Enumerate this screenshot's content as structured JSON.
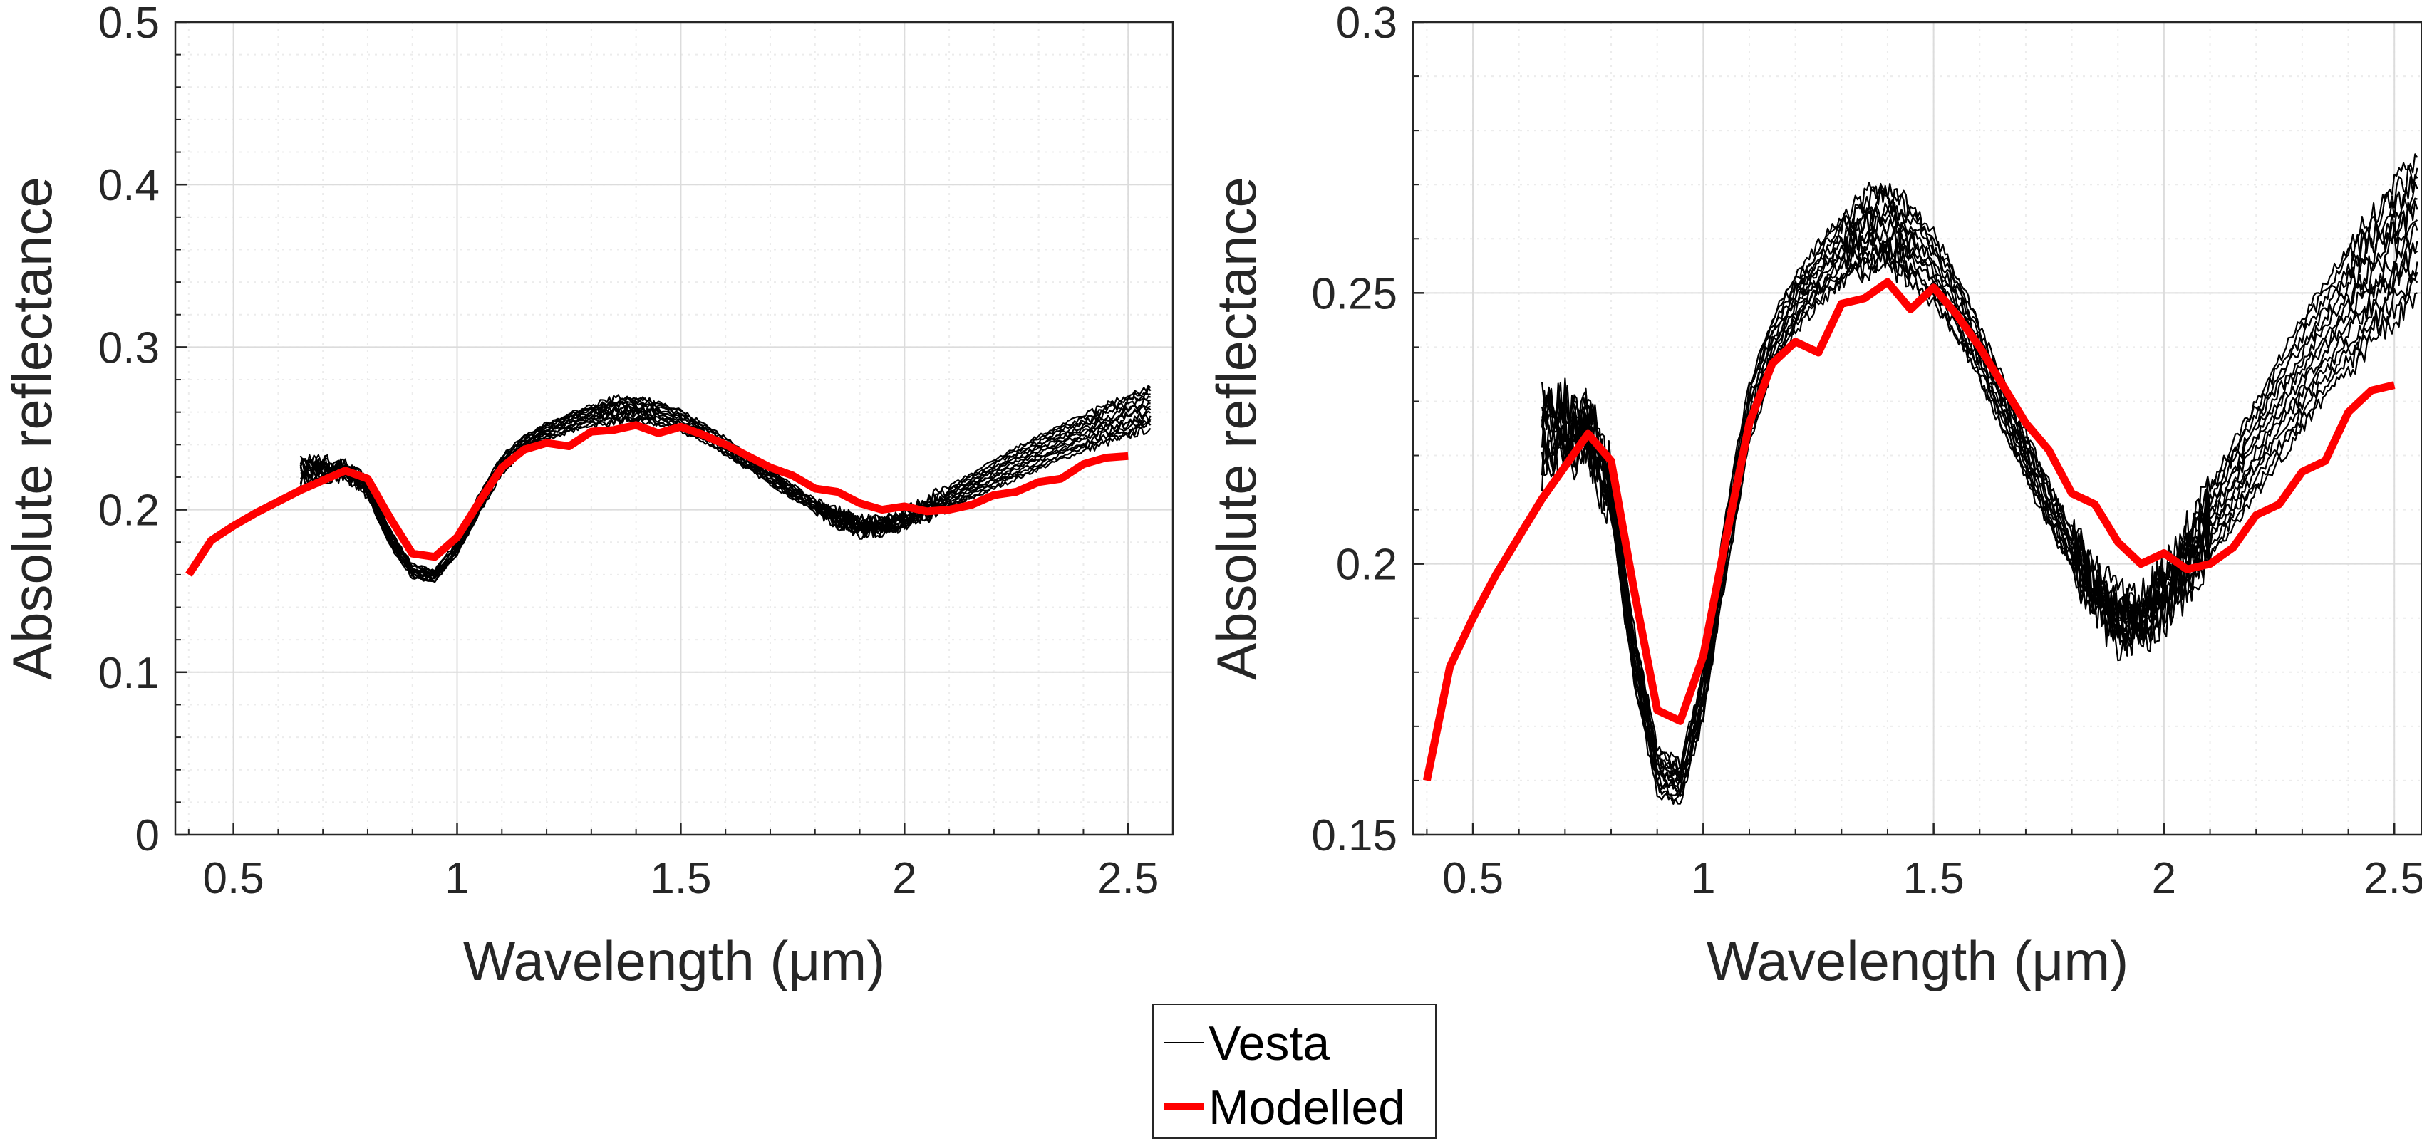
{
  "figure": {
    "legend": {
      "entries": [
        "Vesta",
        "Modelled"
      ],
      "placement": "bottom-center"
    }
  },
  "chart_data": [
    {
      "type": "line",
      "panel": "left",
      "title": "",
      "xlabel": "Wavelength (μm)",
      "ylabel": "Absolute reflectance",
      "xlim": [
        0.37,
        2.6
      ],
      "ylim": [
        0,
        0.5
      ],
      "xticks": [
        0.5,
        1,
        1.5,
        2,
        2.5
      ],
      "xtick_labels": [
        "0.5",
        "1",
        "1.5",
        "2",
        "2.5"
      ],
      "yticks": [
        0,
        0.1,
        0.2,
        0.3,
        0.4,
        0.5
      ],
      "ytick_labels": [
        "0",
        "0.1",
        "0.2",
        "0.3",
        "0.4",
        "0.5"
      ],
      "grid": true,
      "series": [
        {
          "name": "Modelled",
          "color": "#ff0000",
          "x": [
            0.4,
            0.45,
            0.5,
            0.55,
            0.6,
            0.65,
            0.7,
            0.75,
            0.8,
            0.85,
            0.9,
            0.95,
            1.0,
            1.05,
            1.1,
            1.15,
            1.2,
            1.25,
            1.3,
            1.35,
            1.4,
            1.45,
            1.5,
            1.55,
            1.6,
            1.65,
            1.7,
            1.75,
            1.8,
            1.85,
            1.9,
            1.95,
            2.0,
            2.05,
            2.1,
            2.15,
            2.2,
            2.25,
            2.3,
            2.35,
            2.4,
            2.45,
            2.5
          ],
          "y": [
            0.16,
            0.181,
            0.19,
            0.198,
            0.205,
            0.212,
            0.218,
            0.224,
            0.219,
            0.195,
            0.173,
            0.171,
            0.183,
            0.205,
            0.226,
            0.237,
            0.241,
            0.239,
            0.248,
            0.249,
            0.252,
            0.247,
            0.251,
            0.246,
            0.24,
            0.233,
            0.226,
            0.221,
            0.213,
            0.211,
            0.204,
            0.2,
            0.202,
            0.199,
            0.2,
            0.203,
            0.209,
            0.211,
            0.217,
            0.219,
            0.228,
            0.232,
            0.233
          ]
        },
        {
          "name": "Vesta",
          "color": "#000000",
          "x": [
            0.65,
            0.7,
            0.75,
            0.8,
            0.85,
            0.9,
            0.95,
            1.0,
            1.05,
            1.1,
            1.15,
            1.2,
            1.25,
            1.3,
            1.35,
            1.4,
            1.45,
            1.5,
            1.55,
            1.6,
            1.65,
            1.7,
            1.75,
            1.8,
            1.85,
            1.9,
            1.95,
            2.0,
            2.05,
            2.1,
            2.15,
            2.2,
            2.25,
            2.3,
            2.35,
            2.4,
            2.45,
            2.5,
            2.55
          ],
          "y_low": [
            0.218,
            0.219,
            0.221,
            0.208,
            0.178,
            0.158,
            0.156,
            0.172,
            0.198,
            0.222,
            0.236,
            0.243,
            0.248,
            0.252,
            0.254,
            0.255,
            0.252,
            0.248,
            0.242,
            0.234,
            0.225,
            0.216,
            0.207,
            0.199,
            0.191,
            0.186,
            0.186,
            0.19,
            0.195,
            0.201,
            0.207,
            0.213,
            0.219,
            0.225,
            0.231,
            0.236,
            0.241,
            0.245,
            0.25
          ],
          "y_high": [
            0.23,
            0.23,
            0.228,
            0.218,
            0.188,
            0.166,
            0.163,
            0.18,
            0.21,
            0.233,
            0.245,
            0.253,
            0.259,
            0.264,
            0.268,
            0.269,
            0.266,
            0.261,
            0.253,
            0.244,
            0.234,
            0.224,
            0.215,
            0.206,
            0.199,
            0.194,
            0.193,
            0.199,
            0.206,
            0.214,
            0.222,
            0.23,
            0.238,
            0.245,
            0.252,
            0.258,
            0.264,
            0.27,
            0.275
          ]
        }
      ]
    },
    {
      "type": "line",
      "panel": "right",
      "title": "",
      "xlabel": "Wavelength (μm)",
      "ylabel": "Absolute reflectance",
      "xlim": [
        0.37,
        2.56
      ],
      "ylim": [
        0.15,
        0.3
      ],
      "xticks": [
        0.5,
        1,
        1.5,
        2,
        2.5
      ],
      "xtick_labels": [
        "0.5",
        "1",
        "1.5",
        "2",
        "2.5"
      ],
      "yticks": [
        0.15,
        0.2,
        0.25,
        0.3
      ],
      "ytick_labels": [
        "0.15",
        "0.2",
        "0.25",
        "0.3"
      ],
      "grid": true,
      "series": [
        {
          "name": "Modelled",
          "color": "#ff0000",
          "x": [
            0.4,
            0.45,
            0.5,
            0.55,
            0.6,
            0.65,
            0.7,
            0.75,
            0.8,
            0.85,
            0.9,
            0.95,
            1.0,
            1.05,
            1.1,
            1.15,
            1.2,
            1.25,
            1.3,
            1.35,
            1.4,
            1.45,
            1.5,
            1.55,
            1.6,
            1.65,
            1.7,
            1.75,
            1.8,
            1.85,
            1.9,
            1.95,
            2.0,
            2.05,
            2.1,
            2.15,
            2.2,
            2.25,
            2.3,
            2.35,
            2.4,
            2.45,
            2.5
          ],
          "y": [
            0.16,
            0.181,
            0.19,
            0.198,
            0.205,
            0.212,
            0.218,
            0.224,
            0.219,
            0.195,
            0.173,
            0.171,
            0.183,
            0.205,
            0.226,
            0.237,
            0.241,
            0.239,
            0.248,
            0.249,
            0.252,
            0.247,
            0.251,
            0.246,
            0.24,
            0.233,
            0.226,
            0.221,
            0.213,
            0.211,
            0.204,
            0.2,
            0.202,
            0.199,
            0.2,
            0.203,
            0.209,
            0.211,
            0.217,
            0.219,
            0.228,
            0.232,
            0.233
          ]
        },
        {
          "name": "Vesta",
          "color": "#000000",
          "x": [
            0.65,
            0.7,
            0.75,
            0.8,
            0.85,
            0.9,
            0.95,
            1.0,
            1.05,
            1.1,
            1.15,
            1.2,
            1.25,
            1.3,
            1.35,
            1.4,
            1.45,
            1.5,
            1.55,
            1.6,
            1.65,
            1.7,
            1.75,
            1.8,
            1.85,
            1.9,
            1.95,
            2.0,
            2.05,
            2.1,
            2.15,
            2.2,
            2.25,
            2.3,
            2.35,
            2.4,
            2.45,
            2.5,
            2.55
          ],
          "y_low": [
            0.218,
            0.219,
            0.221,
            0.208,
            0.178,
            0.158,
            0.156,
            0.172,
            0.198,
            0.222,
            0.236,
            0.243,
            0.248,
            0.252,
            0.254,
            0.255,
            0.252,
            0.248,
            0.242,
            0.234,
            0.225,
            0.216,
            0.207,
            0.199,
            0.191,
            0.186,
            0.186,
            0.19,
            0.195,
            0.201,
            0.207,
            0.213,
            0.219,
            0.225,
            0.231,
            0.236,
            0.241,
            0.245,
            0.25
          ],
          "y_high": [
            0.23,
            0.23,
            0.228,
            0.218,
            0.188,
            0.166,
            0.163,
            0.18,
            0.21,
            0.233,
            0.245,
            0.253,
            0.259,
            0.264,
            0.268,
            0.269,
            0.266,
            0.261,
            0.253,
            0.244,
            0.234,
            0.224,
            0.215,
            0.206,
            0.199,
            0.194,
            0.193,
            0.199,
            0.206,
            0.214,
            0.222,
            0.23,
            0.238,
            0.245,
            0.252,
            0.258,
            0.264,
            0.27,
            0.275
          ]
        }
      ]
    }
  ]
}
